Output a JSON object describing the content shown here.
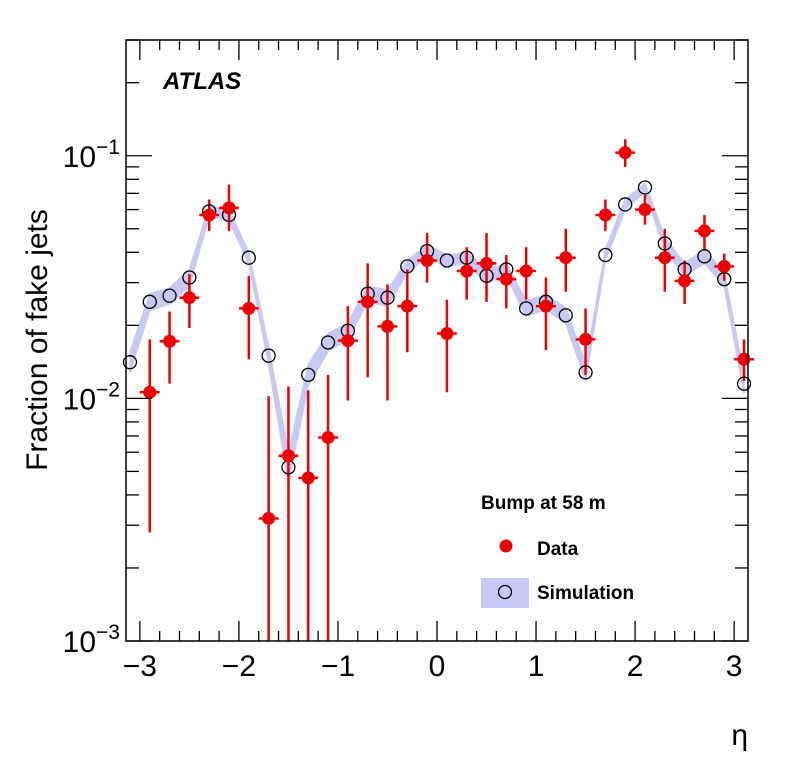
{
  "chart_data": {
    "type": "scatter",
    "experiment_label": "ATLAS",
    "xlabel": "η",
    "ylabel": "Fraction of fake jets",
    "xlim": [
      -3.14,
      3.14
    ],
    "ylim": [
      0.001,
      0.3
    ],
    "yscale": "log",
    "x_ticks": [
      -3,
      -2,
      -1,
      0,
      1,
      2,
      3
    ],
    "x_tick_labels": [
      "−3",
      "−2",
      "−1",
      "0",
      "1",
      "2",
      "3"
    ],
    "y_ticks": [
      {
        "value": 0.001,
        "base": "10",
        "exp": "−3"
      },
      {
        "value": 0.01,
        "base": "10",
        "exp": "−2"
      },
      {
        "value": 0.1,
        "base": "10",
        "exp": "−1"
      }
    ],
    "legend": {
      "title": "Bump at 58 m",
      "entries": [
        {
          "name": "Data",
          "marker": "filled-circle",
          "color": "#ee0000"
        },
        {
          "name": "Simulation",
          "marker": "open-circle",
          "band_color": "#c8c8f4"
        }
      ]
    },
    "colors": {
      "data": "#ee0000",
      "band": "#c8c8f4",
      "sim_marker": "#000000"
    },
    "bin_half_width": 0.1,
    "series": [
      {
        "name": "Data",
        "points": [
          {
            "x": -2.9,
            "y": 0.0106,
            "lo": 0.0028,
            "hi": 0.0175
          },
          {
            "x": -2.7,
            "y": 0.0172,
            "lo": 0.0115,
            "hi": 0.0228
          },
          {
            "x": -2.5,
            "y": 0.026,
            "lo": 0.0195,
            "hi": 0.0325
          },
          {
            "x": -2.3,
            "y": 0.057,
            "lo": 0.049,
            "hi": 0.066
          },
          {
            "x": -2.1,
            "y": 0.061,
            "lo": 0.049,
            "hi": 0.076
          },
          {
            "x": -1.9,
            "y": 0.0235,
            "lo": 0.0145,
            "hi": 0.032
          },
          {
            "x": -1.7,
            "y": 0.0032,
            "lo": 0.0008,
            "hi": 0.0102
          },
          {
            "x": -1.5,
            "y": 0.0058,
            "lo": 0.0008,
            "hi": 0.0112
          },
          {
            "x": -1.3,
            "y": 0.0047,
            "lo": 0.0008,
            "hi": 0.0108
          },
          {
            "x": -1.1,
            "y": 0.0069,
            "lo": 0.0008,
            "hi": 0.0125
          },
          {
            "x": -0.9,
            "y": 0.0173,
            "lo": 0.0098,
            "hi": 0.024
          },
          {
            "x": -0.7,
            "y": 0.025,
            "lo": 0.0122,
            "hi": 0.036
          },
          {
            "x": -0.5,
            "y": 0.0198,
            "lo": 0.0098,
            "hi": 0.0295
          },
          {
            "x": -0.3,
            "y": 0.024,
            "lo": 0.0155,
            "hi": 0.034
          },
          {
            "x": -0.1,
            "y": 0.037,
            "lo": 0.03,
            "hi": 0.048
          },
          {
            "x": 0.1,
            "y": 0.0185,
            "lo": 0.0106,
            "hi": 0.0255
          },
          {
            "x": 0.3,
            "y": 0.0335,
            "lo": 0.0255,
            "hi": 0.042
          },
          {
            "x": 0.5,
            "y": 0.036,
            "lo": 0.025,
            "hi": 0.048
          },
          {
            "x": 0.7,
            "y": 0.031,
            "lo": 0.0235,
            "hi": 0.039
          },
          {
            "x": 0.9,
            "y": 0.0335,
            "lo": 0.0255,
            "hi": 0.042
          },
          {
            "x": 1.1,
            "y": 0.024,
            "lo": 0.0158,
            "hi": 0.0315
          },
          {
            "x": 1.3,
            "y": 0.038,
            "lo": 0.0275,
            "hi": 0.05
          },
          {
            "x": 1.5,
            "y": 0.0175,
            "lo": 0.0125,
            "hi": 0.0235
          },
          {
            "x": 1.7,
            "y": 0.057,
            "lo": 0.049,
            "hi": 0.066
          },
          {
            "x": 1.9,
            "y": 0.103,
            "lo": 0.09,
            "hi": 0.117
          },
          {
            "x": 2.1,
            "y": 0.06,
            "lo": 0.052,
            "hi": 0.069
          },
          {
            "x": 2.3,
            "y": 0.038,
            "lo": 0.0275,
            "hi": 0.05
          },
          {
            "x": 2.5,
            "y": 0.0305,
            "lo": 0.0245,
            "hi": 0.037
          },
          {
            "x": 2.7,
            "y": 0.049,
            "lo": 0.041,
            "hi": 0.057
          },
          {
            "x": 2.9,
            "y": 0.035,
            "lo": 0.0305,
            "hi": 0.0395
          },
          {
            "x": 3.1,
            "y": 0.0145,
            "lo": 0.0118,
            "hi": 0.0175
          }
        ]
      },
      {
        "name": "Simulation",
        "points": [
          {
            "x": -3.1,
            "y": 0.0141,
            "lo": 0.0128,
            "hi": 0.0155
          },
          {
            "x": -2.9,
            "y": 0.025,
            "lo": 0.023,
            "hi": 0.027
          },
          {
            "x": -2.7,
            "y": 0.0265,
            "lo": 0.0245,
            "hi": 0.0285
          },
          {
            "x": -2.5,
            "y": 0.0315,
            "lo": 0.029,
            "hi": 0.034
          },
          {
            "x": -2.3,
            "y": 0.059,
            "lo": 0.056,
            "hi": 0.062
          },
          {
            "x": -2.1,
            "y": 0.057,
            "lo": 0.054,
            "hi": 0.06
          },
          {
            "x": -1.9,
            "y": 0.038,
            "lo": 0.036,
            "hi": 0.04
          },
          {
            "x": -1.7,
            "y": 0.015,
            "lo": 0.0138,
            "hi": 0.0163
          },
          {
            "x": -1.5,
            "y": 0.0052,
            "lo": 0.0045,
            "hi": 0.006
          },
          {
            "x": -1.3,
            "y": 0.0125,
            "lo": 0.0113,
            "hi": 0.0138
          },
          {
            "x": -1.1,
            "y": 0.017,
            "lo": 0.0156,
            "hi": 0.0185
          },
          {
            "x": -0.9,
            "y": 0.019,
            "lo": 0.0175,
            "hi": 0.0205
          },
          {
            "x": -0.7,
            "y": 0.027,
            "lo": 0.025,
            "hi": 0.029
          },
          {
            "x": -0.5,
            "y": 0.026,
            "lo": 0.024,
            "hi": 0.028
          },
          {
            "x": -0.3,
            "y": 0.035,
            "lo": 0.033,
            "hi": 0.037
          },
          {
            "x": -0.1,
            "y": 0.0405,
            "lo": 0.038,
            "hi": 0.043
          },
          {
            "x": 0.1,
            "y": 0.037,
            "lo": 0.035,
            "hi": 0.039
          },
          {
            "x": 0.3,
            "y": 0.038,
            "lo": 0.036,
            "hi": 0.04
          },
          {
            "x": 0.5,
            "y": 0.032,
            "lo": 0.03,
            "hi": 0.034
          },
          {
            "x": 0.7,
            "y": 0.034,
            "lo": 0.032,
            "hi": 0.036
          },
          {
            "x": 0.9,
            "y": 0.0235,
            "lo": 0.0218,
            "hi": 0.0252
          },
          {
            "x": 1.1,
            "y": 0.025,
            "lo": 0.0232,
            "hi": 0.0268
          },
          {
            "x": 1.3,
            "y": 0.022,
            "lo": 0.0204,
            "hi": 0.0236
          },
          {
            "x": 1.5,
            "y": 0.0128,
            "lo": 0.0118,
            "hi": 0.0138
          },
          {
            "x": 1.7,
            "y": 0.039,
            "lo": 0.037,
            "hi": 0.041
          },
          {
            "x": 1.9,
            "y": 0.063,
            "lo": 0.06,
            "hi": 0.066
          },
          {
            "x": 2.1,
            "y": 0.074,
            "lo": 0.071,
            "hi": 0.077
          },
          {
            "x": 2.3,
            "y": 0.0435,
            "lo": 0.041,
            "hi": 0.046
          },
          {
            "x": 2.5,
            "y": 0.034,
            "lo": 0.032,
            "hi": 0.036
          },
          {
            "x": 2.7,
            "y": 0.0385,
            "lo": 0.036,
            "hi": 0.041
          },
          {
            "x": 2.9,
            "y": 0.031,
            "lo": 0.029,
            "hi": 0.033
          },
          {
            "x": 3.1,
            "y": 0.0115,
            "lo": 0.0105,
            "hi": 0.0125
          }
        ]
      }
    ]
  }
}
